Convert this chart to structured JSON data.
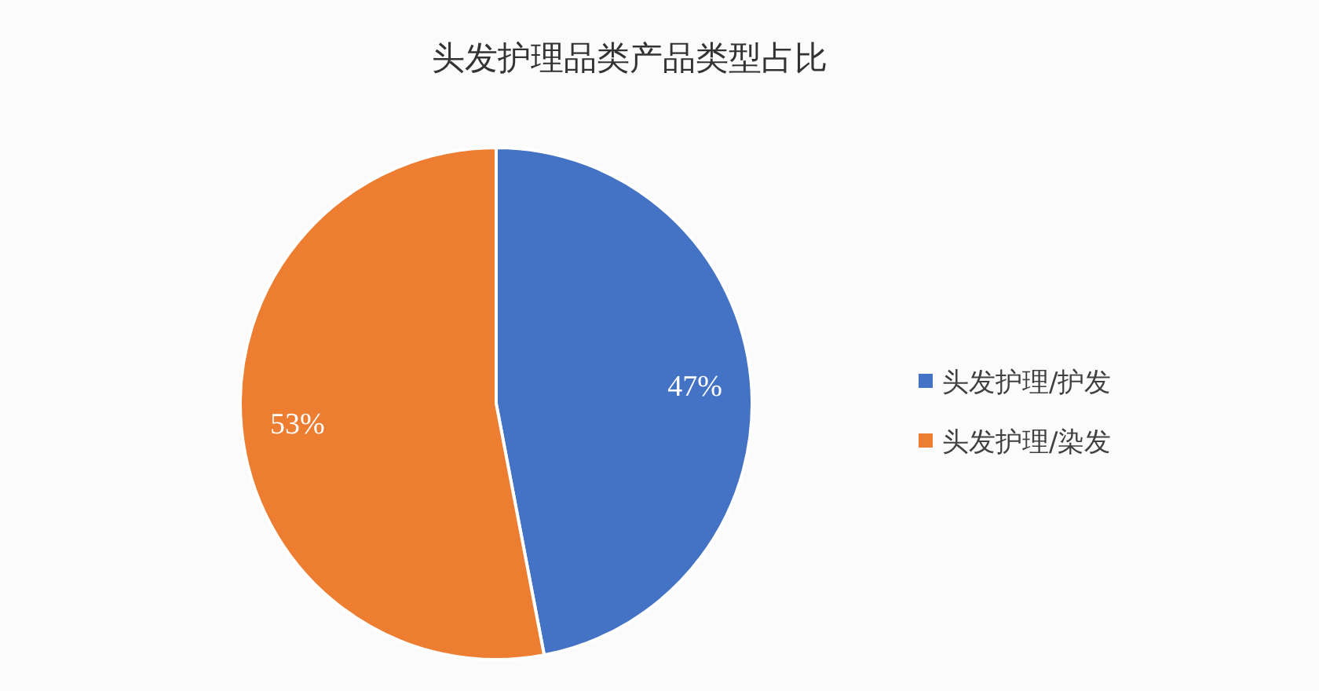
{
  "chart_data": {
    "type": "pie",
    "title": "头发护理品类产品类型占比",
    "categories": [
      "头发护理/护发",
      "头发护理/染发"
    ],
    "values": [
      47,
      53
    ],
    "colors": [
      "#4472c4",
      "#ed7d31"
    ],
    "value_labels": [
      "47%",
      "53%"
    ],
    "legend": "right"
  }
}
